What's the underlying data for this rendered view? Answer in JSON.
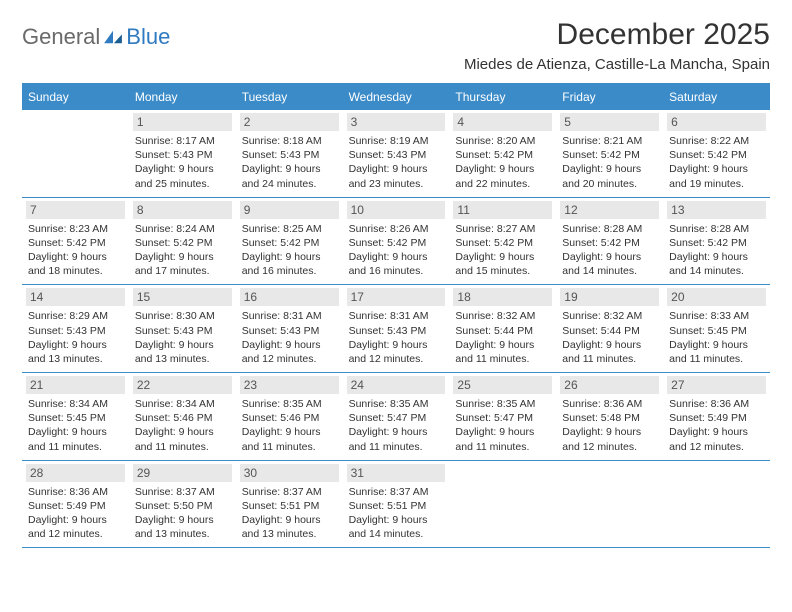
{
  "logo": {
    "general": "General",
    "blue": "Blue"
  },
  "title": "December 2025",
  "location": "Miedes de Atienza, Castille-La Mancha, Spain",
  "colors": {
    "header_bar": "#3b8bc9",
    "daynum_bg": "#e8e8e8",
    "text": "#333333",
    "logo_gray": "#6a6a6a",
    "logo_blue": "#2f7ac0"
  },
  "layout": {
    "columns": 7,
    "rows": 5,
    "daynum_fontsize": 12,
    "body_fontsize": 10.5,
    "title_fontsize": 30,
    "location_fontsize": 15
  },
  "days_of_week": [
    "Sunday",
    "Monday",
    "Tuesday",
    "Wednesday",
    "Thursday",
    "Friday",
    "Saturday"
  ],
  "weeks": [
    [
      {
        "n": "",
        "sunrise": "",
        "sunset": "",
        "daylight": ""
      },
      {
        "n": "1",
        "sunrise": "Sunrise: 8:17 AM",
        "sunset": "Sunset: 5:43 PM",
        "daylight": "Daylight: 9 hours and 25 minutes."
      },
      {
        "n": "2",
        "sunrise": "Sunrise: 8:18 AM",
        "sunset": "Sunset: 5:43 PM",
        "daylight": "Daylight: 9 hours and 24 minutes."
      },
      {
        "n": "3",
        "sunrise": "Sunrise: 8:19 AM",
        "sunset": "Sunset: 5:43 PM",
        "daylight": "Daylight: 9 hours and 23 minutes."
      },
      {
        "n": "4",
        "sunrise": "Sunrise: 8:20 AM",
        "sunset": "Sunset: 5:42 PM",
        "daylight": "Daylight: 9 hours and 22 minutes."
      },
      {
        "n": "5",
        "sunrise": "Sunrise: 8:21 AM",
        "sunset": "Sunset: 5:42 PM",
        "daylight": "Daylight: 9 hours and 20 minutes."
      },
      {
        "n": "6",
        "sunrise": "Sunrise: 8:22 AM",
        "sunset": "Sunset: 5:42 PM",
        "daylight": "Daylight: 9 hours and 19 minutes."
      }
    ],
    [
      {
        "n": "7",
        "sunrise": "Sunrise: 8:23 AM",
        "sunset": "Sunset: 5:42 PM",
        "daylight": "Daylight: 9 hours and 18 minutes."
      },
      {
        "n": "8",
        "sunrise": "Sunrise: 8:24 AM",
        "sunset": "Sunset: 5:42 PM",
        "daylight": "Daylight: 9 hours and 17 minutes."
      },
      {
        "n": "9",
        "sunrise": "Sunrise: 8:25 AM",
        "sunset": "Sunset: 5:42 PM",
        "daylight": "Daylight: 9 hours and 16 minutes."
      },
      {
        "n": "10",
        "sunrise": "Sunrise: 8:26 AM",
        "sunset": "Sunset: 5:42 PM",
        "daylight": "Daylight: 9 hours and 16 minutes."
      },
      {
        "n": "11",
        "sunrise": "Sunrise: 8:27 AM",
        "sunset": "Sunset: 5:42 PM",
        "daylight": "Daylight: 9 hours and 15 minutes."
      },
      {
        "n": "12",
        "sunrise": "Sunrise: 8:28 AM",
        "sunset": "Sunset: 5:42 PM",
        "daylight": "Daylight: 9 hours and 14 minutes."
      },
      {
        "n": "13",
        "sunrise": "Sunrise: 8:28 AM",
        "sunset": "Sunset: 5:42 PM",
        "daylight": "Daylight: 9 hours and 14 minutes."
      }
    ],
    [
      {
        "n": "14",
        "sunrise": "Sunrise: 8:29 AM",
        "sunset": "Sunset: 5:43 PM",
        "daylight": "Daylight: 9 hours and 13 minutes."
      },
      {
        "n": "15",
        "sunrise": "Sunrise: 8:30 AM",
        "sunset": "Sunset: 5:43 PM",
        "daylight": "Daylight: 9 hours and 13 minutes."
      },
      {
        "n": "16",
        "sunrise": "Sunrise: 8:31 AM",
        "sunset": "Sunset: 5:43 PM",
        "daylight": "Daylight: 9 hours and 12 minutes."
      },
      {
        "n": "17",
        "sunrise": "Sunrise: 8:31 AM",
        "sunset": "Sunset: 5:43 PM",
        "daylight": "Daylight: 9 hours and 12 minutes."
      },
      {
        "n": "18",
        "sunrise": "Sunrise: 8:32 AM",
        "sunset": "Sunset: 5:44 PM",
        "daylight": "Daylight: 9 hours and 11 minutes."
      },
      {
        "n": "19",
        "sunrise": "Sunrise: 8:32 AM",
        "sunset": "Sunset: 5:44 PM",
        "daylight": "Daylight: 9 hours and 11 minutes."
      },
      {
        "n": "20",
        "sunrise": "Sunrise: 8:33 AM",
        "sunset": "Sunset: 5:45 PM",
        "daylight": "Daylight: 9 hours and 11 minutes."
      }
    ],
    [
      {
        "n": "21",
        "sunrise": "Sunrise: 8:34 AM",
        "sunset": "Sunset: 5:45 PM",
        "daylight": "Daylight: 9 hours and 11 minutes."
      },
      {
        "n": "22",
        "sunrise": "Sunrise: 8:34 AM",
        "sunset": "Sunset: 5:46 PM",
        "daylight": "Daylight: 9 hours and 11 minutes."
      },
      {
        "n": "23",
        "sunrise": "Sunrise: 8:35 AM",
        "sunset": "Sunset: 5:46 PM",
        "daylight": "Daylight: 9 hours and 11 minutes."
      },
      {
        "n": "24",
        "sunrise": "Sunrise: 8:35 AM",
        "sunset": "Sunset: 5:47 PM",
        "daylight": "Daylight: 9 hours and 11 minutes."
      },
      {
        "n": "25",
        "sunrise": "Sunrise: 8:35 AM",
        "sunset": "Sunset: 5:47 PM",
        "daylight": "Daylight: 9 hours and 11 minutes."
      },
      {
        "n": "26",
        "sunrise": "Sunrise: 8:36 AM",
        "sunset": "Sunset: 5:48 PM",
        "daylight": "Daylight: 9 hours and 12 minutes."
      },
      {
        "n": "27",
        "sunrise": "Sunrise: 8:36 AM",
        "sunset": "Sunset: 5:49 PM",
        "daylight": "Daylight: 9 hours and 12 minutes."
      }
    ],
    [
      {
        "n": "28",
        "sunrise": "Sunrise: 8:36 AM",
        "sunset": "Sunset: 5:49 PM",
        "daylight": "Daylight: 9 hours and 12 minutes."
      },
      {
        "n": "29",
        "sunrise": "Sunrise: 8:37 AM",
        "sunset": "Sunset: 5:50 PM",
        "daylight": "Daylight: 9 hours and 13 minutes."
      },
      {
        "n": "30",
        "sunrise": "Sunrise: 8:37 AM",
        "sunset": "Sunset: 5:51 PM",
        "daylight": "Daylight: 9 hours and 13 minutes."
      },
      {
        "n": "31",
        "sunrise": "Sunrise: 8:37 AM",
        "sunset": "Sunset: 5:51 PM",
        "daylight": "Daylight: 9 hours and 14 minutes."
      },
      {
        "n": "",
        "sunrise": "",
        "sunset": "",
        "daylight": ""
      },
      {
        "n": "",
        "sunrise": "",
        "sunset": "",
        "daylight": ""
      },
      {
        "n": "",
        "sunrise": "",
        "sunset": "",
        "daylight": ""
      }
    ]
  ]
}
